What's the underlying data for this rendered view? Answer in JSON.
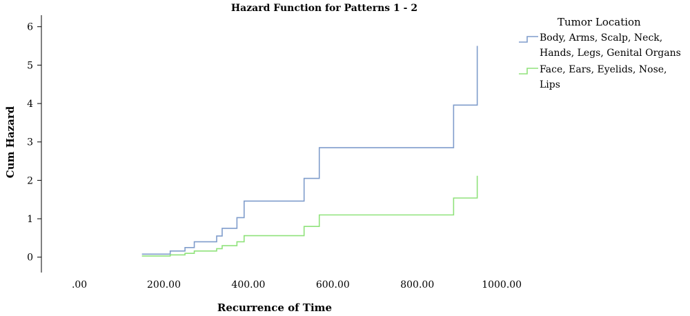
{
  "chart_data": {
    "type": "line",
    "step": true,
    "title": "Hazard Function for Patterns 1 - 2",
    "xlabel": "Recurrence of Time",
    "ylabel": "Cum Hazard",
    "xlim": [
      -90,
      1070
    ],
    "ylim": [
      -0.4,
      6.3
    ],
    "x_ticks": [
      0,
      200,
      400,
      600,
      800,
      1000
    ],
    "x_tick_labels": [
      ".00",
      "200.00",
      "400.00",
      "600.00",
      "800.00",
      "1000.00"
    ],
    "y_ticks": [
      0,
      1,
      2,
      3,
      4,
      5,
      6
    ],
    "y_tick_labels": [
      "0",
      "1",
      "2",
      "3",
      "4",
      "5",
      "6"
    ],
    "grid": false,
    "legend_title": "Tumor Location",
    "legend_position": "top-right",
    "series": [
      {
        "name": "Body, Arms, Scalp, Neck, Hands, Legs, Genital Organs",
        "legend_lines": [
          "Body, Arms, Scalp, Neck,",
          "Hands, Legs, Genital Organs"
        ],
        "color": "#7f9ccb",
        "x": [
          148,
          215,
          250,
          272,
          325,
          338,
          373,
          390,
          532,
          568,
          886,
          942,
          942
        ],
        "y": [
          0.08,
          0.16,
          0.25,
          0.4,
          0.55,
          0.75,
          1.03,
          1.46,
          2.05,
          2.85,
          3.96,
          3.96,
          5.5
        ]
      },
      {
        "name": "Face, Ears, Eyelids, Nose, Lips",
        "legend_lines": [
          "Face, Ears, Eyelids, Nose,",
          "Lips"
        ],
        "color": "#8fe27a",
        "x": [
          148,
          215,
          250,
          272,
          325,
          338,
          373,
          390,
          532,
          568,
          886,
          942,
          942
        ],
        "y": [
          0.03,
          0.06,
          0.1,
          0.16,
          0.22,
          0.3,
          0.4,
          0.56,
          0.8,
          1.1,
          1.54,
          1.54,
          2.12
        ]
      }
    ]
  }
}
